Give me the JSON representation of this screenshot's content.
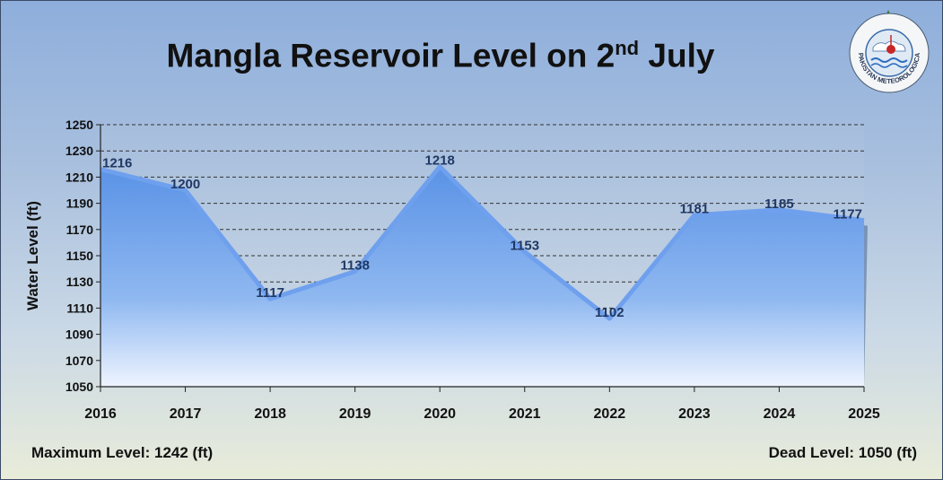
{
  "title": "Mangla Reservoir Level on 2",
  "title_superscript": "nd",
  "title_suffix": " July",
  "footer": {
    "max_level": "Maximum Level: 1242 (ft)",
    "dead_level": "Dead Level: 1050 (ft)"
  },
  "logo": {
    "text": "PAKISTAN METEOROLOGICAL DEPARTMENT",
    "icon": "pmd-emblem-icon"
  },
  "colors": {
    "area_top": "#5a92e6",
    "area_bottom": "#eef4ff",
    "line": "#6fa0ee",
    "data_label": "#1f3864",
    "gridline": "#333333"
  },
  "chart_data": {
    "type": "area",
    "x": [
      "2016",
      "2017",
      "2018",
      "2019",
      "2020",
      "2021",
      "2022",
      "2023",
      "2024",
      "2025"
    ],
    "values": [
      1216,
      1200,
      1117,
      1138,
      1218,
      1153,
      1102,
      1181,
      1185,
      1177
    ],
    "data_labels": [
      "1216",
      "1200",
      "1117",
      "1138",
      "1218",
      "1153",
      "1102",
      "1181",
      "1185",
      "1177"
    ],
    "ylabel": "Water Level (ft)",
    "xlabel": "",
    "ylim": [
      1050,
      1250
    ],
    "yticks": [
      "1050",
      "1070",
      "1090",
      "1110",
      "1130",
      "1150",
      "1170",
      "1190",
      "1210",
      "1230",
      "1250"
    ],
    "grid": "horizontal-dashed",
    "legend": "none"
  }
}
